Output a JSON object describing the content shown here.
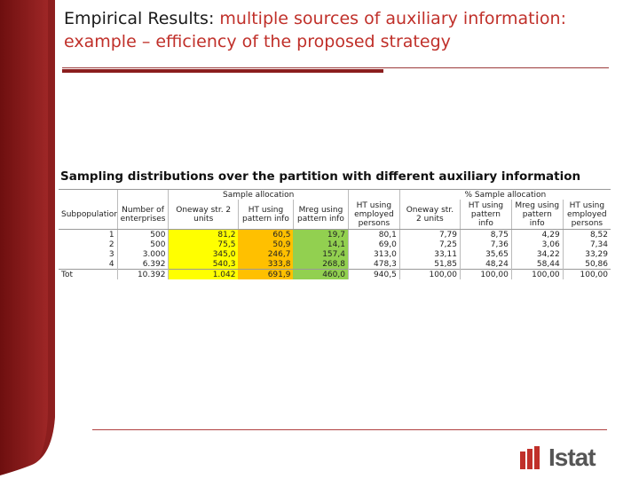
{
  "title": {
    "prefix": "Empirical Results: ",
    "accent_line1": "multiple sources of auxiliary information:",
    "accent_line2": "example – efficiency of the proposed strategy"
  },
  "subtitle": "Sampling distributions over the partition with different auxiliary information",
  "table": {
    "group_headers": {
      "sample_allocation": "Sample allocation",
      "pct_sample_allocation": "% Sample allocation"
    },
    "columns": {
      "subpopulation": "Subpopulation",
      "enterprises": "Number of enterprises",
      "oneway1": "Oneway str. 2 units",
      "ht1": "HT using pattern info",
      "mreg1": "Mreg using pattern info",
      "htemp1": "HT using employed persons",
      "oneway2": "Oneway str. 2 units",
      "ht2": "HT using pattern info",
      "mreg2": "Mreg using pattern info",
      "htemp2": "HT using employed persons"
    },
    "rows": [
      {
        "label": "1",
        "enterprises": "500",
        "oneway1": "81,2",
        "ht1": "60,5",
        "mreg1": "19,7",
        "htemp1": "80,1",
        "oneway2": "7,79",
        "ht2": "8,75",
        "mreg2": "4,29",
        "htemp2": "8,52"
      },
      {
        "label": "2",
        "enterprises": "500",
        "oneway1": "75,5",
        "ht1": "50,9",
        "mreg1": "14,1",
        "htemp1": "69,0",
        "oneway2": "7,25",
        "ht2": "7,36",
        "mreg2": "3,06",
        "htemp2": "7,34"
      },
      {
        "label": "3",
        "enterprises": "3.000",
        "oneway1": "345,0",
        "ht1": "246,7",
        "mreg1": "157,4",
        "htemp1": "313,0",
        "oneway2": "33,11",
        "ht2": "35,65",
        "mreg2": "34,22",
        "htemp2": "33,29"
      },
      {
        "label": "4",
        "enterprises": "6.392",
        "oneway1": "540,3",
        "ht1": "333,8",
        "mreg1": "268,8",
        "htemp1": "478,3",
        "oneway2": "51,85",
        "ht2": "48,24",
        "mreg2": "58,44",
        "htemp2": "50,86"
      }
    ],
    "total": {
      "label": "Tot",
      "enterprises": "10.392",
      "oneway1": "1.042",
      "ht1": "691,9",
      "mreg1": "460,0",
      "htemp1": "940,5",
      "oneway2": "100,00",
      "ht2": "100,00",
      "mreg2": "100,00",
      "htemp2": "100,00"
    }
  },
  "logo": {
    "text": "Istat"
  },
  "colors": {
    "accent": "#c0302a",
    "band": "#8b1e1e",
    "yellow": "#ffff00",
    "orange": "#ffc000",
    "green": "#92d050"
  }
}
